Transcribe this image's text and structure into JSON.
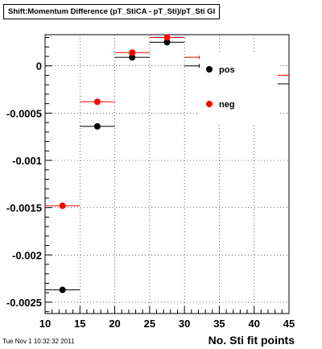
{
  "title": "Shift:Momentum Difference (pT_StiCA - pT_Sti)/pT_Sti Gl",
  "timestamp": "Tue Nov  1 10:32:32 2011",
  "chart_data": {
    "type": "scatter",
    "title": "Shift:Momentum Difference (pT_StiCA - pT_Sti)/pT_Sti Gl",
    "xlabel": "No. Sti fit points",
    "ylabel": "",
    "xlim": [
      10,
      45
    ],
    "ylim": [
      -0.00262,
      0.00033
    ],
    "x_ticks": [
      10,
      15,
      20,
      25,
      30,
      35,
      40,
      45
    ],
    "x_tick_labels": [
      "10",
      "15",
      "20",
      "25",
      "30",
      "35",
      "40",
      "45"
    ],
    "y_ticks": [
      -0.0025,
      -0.002,
      -0.0015,
      -0.001,
      -0.0005,
      0
    ],
    "y_tick_labels": [
      "-0.0025",
      "-0.002",
      "-0.0015",
      "-0.001",
      "-0.0005",
      "0"
    ],
    "grid": true,
    "legend_position": "right",
    "series": [
      {
        "name": "pos",
        "color": "#000000",
        "points": [
          {
            "x": 12.5,
            "xerr": 2.5,
            "y": -0.00237
          },
          {
            "x": 17.5,
            "xerr": 2.5,
            "y": -0.00064
          },
          {
            "x": 22.5,
            "xerr": 2.5,
            "y": 9e-05
          },
          {
            "x": 27.5,
            "xerr": 2.5,
            "y": 0.00025
          },
          {
            "x": 32.5,
            "xerr": 2.5,
            "y": 0.0
          },
          {
            "x": 42.5,
            "xerr": 2.5,
            "y": -0.00019
          }
        ]
      },
      {
        "name": "neg",
        "color": "#ff0000",
        "points": [
          {
            "x": 12.5,
            "xerr": 2.5,
            "y": -0.00148
          },
          {
            "x": 17.5,
            "xerr": 2.5,
            "y": -0.00038
          },
          {
            "x": 22.5,
            "xerr": 2.5,
            "y": 0.00014
          },
          {
            "x": 27.5,
            "xerr": 2.5,
            "y": 0.0003
          },
          {
            "x": 32.5,
            "xerr": 2.5,
            "y": 9e-05
          },
          {
            "x": 42.5,
            "xerr": 2.5,
            "y": -0.0001
          }
        ]
      }
    ]
  }
}
